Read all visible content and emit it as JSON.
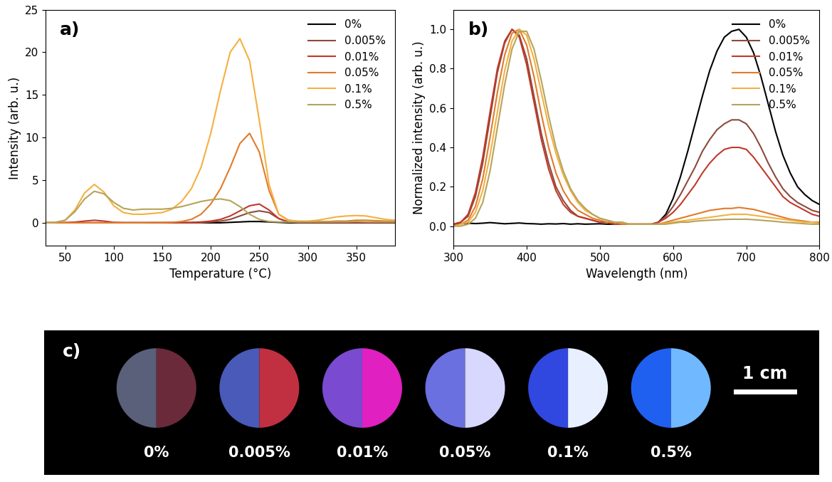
{
  "chart_data": [
    {
      "type": "line",
      "title": "a)",
      "x_label": "Temperature (°C)",
      "y_label": "Intensity (arb. u.)",
      "x": [
        30,
        40,
        50,
        60,
        70,
        80,
        90,
        100,
        110,
        120,
        130,
        140,
        150,
        160,
        170,
        180,
        190,
        200,
        210,
        220,
        230,
        240,
        250,
        260,
        270,
        280,
        290,
        300,
        310,
        320,
        330,
        340,
        350,
        360,
        370,
        380,
        390
      ],
      "xlim": [
        30,
        390
      ],
      "xticks": [
        50,
        100,
        150,
        200,
        250,
        300,
        350
      ],
      "ylim": [
        -2.7,
        25
      ],
      "yticks": [
        0,
        5,
        10,
        15,
        20,
        25
      ],
      "legend": "upper right",
      "series": [
        {
          "name": "0%",
          "color": "#000000",
          "values": [
            0,
            0,
            0,
            0,
            0,
            0,
            0,
            0,
            0,
            0,
            0,
            0,
            0,
            0,
            0,
            0,
            0,
            0,
            0,
            0.05,
            0.1,
            0.15,
            0.15,
            0.1,
            0.05,
            0,
            0,
            0,
            0,
            0,
            0,
            0,
            0,
            0,
            0,
            0,
            0
          ]
        },
        {
          "name": "0.005%",
          "color": "#8c4a3c",
          "values": [
            0,
            0,
            0,
            0,
            0,
            0,
            0,
            0,
            0,
            0,
            0,
            0,
            0,
            0,
            0,
            0,
            0,
            0.1,
            0.2,
            0.4,
            0.8,
            1.2,
            1.4,
            1.2,
            0.5,
            0.1,
            0.05,
            0.05,
            0.05,
            0.05,
            0.05,
            0.05,
            0.05,
            0.05,
            0.05,
            0.05,
            0.05
          ]
        },
        {
          "name": "0.01%",
          "color": "#c0392b",
          "values": [
            0,
            0,
            0.02,
            0.08,
            0.2,
            0.3,
            0.2,
            0.05,
            0.02,
            0.02,
            0.02,
            0.02,
            0.02,
            0.02,
            0.03,
            0.05,
            0.1,
            0.2,
            0.4,
            0.8,
            1.4,
            2.0,
            2.2,
            1.5,
            0.5,
            0.1,
            0.05,
            0.05,
            0.05,
            0.05,
            0.05,
            0.05,
            0.05,
            0.05,
            0.05,
            0.05,
            0.05
          ]
        },
        {
          "name": "0.05%",
          "color": "#e07b2a",
          "values": [
            0,
            0,
            0,
            0,
            0,
            0,
            0,
            0,
            0,
            0,
            0,
            0.02,
            0.02,
            0.05,
            0.15,
            0.4,
            1.0,
            2.2,
            4.0,
            6.5,
            9.3,
            10.5,
            8.3,
            3.8,
            1.0,
            0.3,
            0.15,
            0.15,
            0.15,
            0.15,
            0.2,
            0.2,
            0.3,
            0.3,
            0.25,
            0.2,
            0.2
          ]
        },
        {
          "name": "0.1%",
          "color": "#f5b041",
          "values": [
            0.02,
            0.05,
            0.3,
            1.5,
            3.5,
            4.5,
            3.6,
            2.0,
            1.2,
            1.0,
            1.0,
            1.1,
            1.2,
            1.6,
            2.5,
            4.0,
            6.5,
            10.5,
            15.5,
            20.0,
            21.6,
            19.0,
            12.0,
            4.5,
            1.0,
            0.3,
            0.2,
            0.2,
            0.3,
            0.5,
            0.7,
            0.8,
            0.85,
            0.8,
            0.6,
            0.4,
            0.3
          ]
        },
        {
          "name": "0.5%",
          "color": "#b5a45a",
          "values": [
            0.02,
            0.05,
            0.3,
            1.3,
            2.8,
            3.7,
            3.4,
            2.4,
            1.7,
            1.5,
            1.6,
            1.6,
            1.6,
            1.7,
            1.9,
            2.2,
            2.5,
            2.7,
            2.8,
            2.6,
            1.9,
            1.0,
            0.4,
            0.15,
            0.1,
            0.1,
            0.1,
            0.1,
            0.1,
            0.1,
            0.1,
            0.1,
            0.15,
            0.1,
            0.1,
            0.1,
            0.1
          ]
        }
      ]
    },
    {
      "type": "line",
      "title": "b)",
      "x_label": "Wavelength (nm)",
      "y_label": "Normalized intensity (arb. u.)",
      "x": [
        300,
        310,
        320,
        330,
        340,
        350,
        360,
        370,
        380,
        390,
        400,
        410,
        420,
        430,
        440,
        450,
        460,
        470,
        480,
        490,
        500,
        510,
        520,
        530,
        540,
        550,
        560,
        570,
        580,
        590,
        600,
        610,
        620,
        630,
        640,
        650,
        660,
        670,
        680,
        690,
        700,
        710,
        720,
        730,
        740,
        750,
        760,
        770,
        780,
        790,
        800
      ],
      "xlim": [
        300,
        800
      ],
      "xticks": [
        300,
        400,
        500,
        600,
        700,
        800
      ],
      "ylim": [
        -0.1,
        1.1
      ],
      "yticks": [
        {
          "value": 0,
          "label": "0.0"
        },
        {
          "value": 0.2,
          "label": "0.2"
        },
        {
          "value": 0.4,
          "label": "0.4"
        },
        {
          "value": 0.6,
          "label": "0.6"
        },
        {
          "value": 0.8,
          "label": "0.8"
        },
        {
          "value": 1.0,
          "label": "1.0"
        }
      ],
      "legend": "upper right",
      "series": [
        {
          "name": "0%",
          "color": "#000000",
          "values": [
            0.01,
            0.012,
            0.015,
            0.013,
            0.015,
            0.018,
            0.015,
            0.012,
            0.014,
            0.016,
            0.013,
            0.012,
            0.01,
            0.012,
            0.011,
            0.013,
            0.01,
            0.012,
            0.01,
            0.011,
            0.012,
            0.01,
            0.01,
            null,
            null,
            null,
            null,
            null,
            0.02,
            0.06,
            0.14,
            0.25,
            0.38,
            0.52,
            0.66,
            0.79,
            0.89,
            0.96,
            0.99,
            1.0,
            0.96,
            0.88,
            0.76,
            0.62,
            0.48,
            0.36,
            0.27,
            0.2,
            0.16,
            0.13,
            0.11
          ]
        },
        {
          "name": "0.005%",
          "color": "#8c4a3c",
          "values": [
            0.01,
            0.02,
            0.05,
            0.15,
            0.32,
            0.55,
            0.78,
            0.93,
            1.0,
            0.97,
            0.85,
            0.66,
            0.47,
            0.32,
            0.2,
            0.13,
            0.08,
            0.05,
            0.04,
            0.03,
            0.02,
            0.02,
            0.01,
            0.01,
            0.01,
            0.01,
            0.01,
            0.01,
            0.02,
            0.05,
            0.1,
            0.16,
            0.23,
            0.3,
            0.38,
            0.44,
            0.49,
            0.52,
            0.54,
            0.54,
            0.52,
            0.47,
            0.4,
            0.32,
            0.25,
            0.19,
            0.15,
            0.12,
            0.1,
            0.08,
            0.07
          ]
        },
        {
          "name": "0.01%",
          "color": "#c0392b",
          "values": [
            0.01,
            0.02,
            0.06,
            0.17,
            0.35,
            0.58,
            0.8,
            0.94,
            1.0,
            0.96,
            0.82,
            0.63,
            0.44,
            0.29,
            0.18,
            0.11,
            0.07,
            0.05,
            0.04,
            0.03,
            0.02,
            0.02,
            0.01,
            0.01,
            0.01,
            0.01,
            0.01,
            0.01,
            0.02,
            0.04,
            0.07,
            0.11,
            0.16,
            0.21,
            0.27,
            0.32,
            0.36,
            0.39,
            0.4,
            0.4,
            0.39,
            0.35,
            0.3,
            0.25,
            0.2,
            0.15,
            0.12,
            0.1,
            0.08,
            0.06,
            0.05
          ]
        },
        {
          "name": "0.05%",
          "color": "#e07b2a",
          "values": [
            0.0,
            0.01,
            0.03,
            0.1,
            0.24,
            0.45,
            0.68,
            0.87,
            0.98,
            1.0,
            0.92,
            0.76,
            0.57,
            0.4,
            0.27,
            0.18,
            0.12,
            0.08,
            0.06,
            0.04,
            0.03,
            0.02,
            0.02,
            0.01,
            0.01,
            0.01,
            0.01,
            0.01,
            0.01,
            0.02,
            0.03,
            0.04,
            0.05,
            0.06,
            0.07,
            0.08,
            0.085,
            0.09,
            0.09,
            0.095,
            0.09,
            0.085,
            0.075,
            0.065,
            0.055,
            0.045,
            0.035,
            0.03,
            0.025,
            0.02,
            0.02
          ]
        },
        {
          "name": "0.1%",
          "color": "#f5b041",
          "values": [
            0.0,
            0.01,
            0.02,
            0.07,
            0.18,
            0.36,
            0.58,
            0.79,
            0.94,
            1.0,
            0.97,
            0.85,
            0.68,
            0.51,
            0.37,
            0.26,
            0.18,
            0.12,
            0.08,
            0.06,
            0.04,
            0.03,
            0.02,
            0.02,
            0.01,
            0.01,
            0.01,
            0.01,
            0.01,
            0.015,
            0.02,
            0.025,
            0.03,
            0.035,
            0.04,
            0.045,
            0.05,
            0.055,
            0.06,
            0.06,
            0.06,
            0.055,
            0.05,
            0.045,
            0.04,
            0.035,
            0.03,
            0.025,
            0.02,
            0.02,
            0.015
          ]
        },
        {
          "name": "0.5%",
          "color": "#b5a45a",
          "values": [
            0.0,
            0.0,
            0.01,
            0.04,
            0.12,
            0.28,
            0.5,
            0.72,
            0.9,
            0.99,
            0.99,
            0.9,
            0.74,
            0.56,
            0.4,
            0.28,
            0.19,
            0.13,
            0.09,
            0.06,
            0.04,
            0.03,
            0.02,
            0.02,
            0.01,
            0.01,
            0.01,
            0.01,
            0.01,
            0.01,
            0.015,
            0.02,
            0.02,
            0.025,
            0.028,
            0.03,
            0.032,
            0.034,
            0.035,
            0.035,
            0.035,
            0.033,
            0.03,
            0.027,
            0.024,
            0.02,
            0.018,
            0.015,
            0.012,
            0.01,
            0.01
          ]
        }
      ]
    }
  ],
  "photo": {
    "title": "c)",
    "samples": [
      "0%",
      "0.005%",
      "0.01%",
      "0.05%",
      "0.1%",
      "0.5%"
    ],
    "scale_bar": "1 cm"
  }
}
